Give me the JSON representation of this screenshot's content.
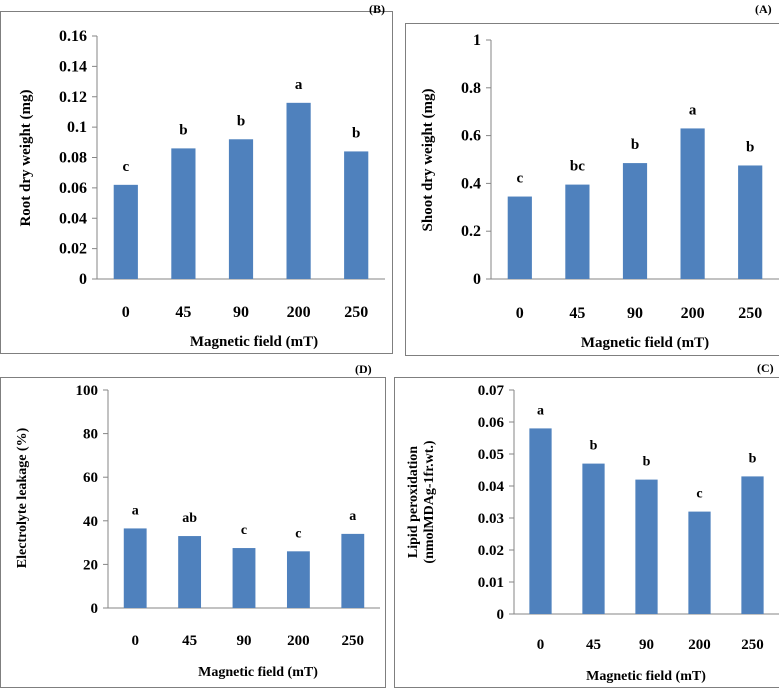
{
  "panel_labels": {
    "B": "(B)",
    "A": "(A)",
    "D": "(D)",
    "C": "(C)"
  },
  "chart_data": [
    {
      "id": "B",
      "type": "bar",
      "categories": [
        "0",
        "45",
        "90",
        "200",
        "250"
      ],
      "values": [
        0.062,
        0.086,
        0.092,
        0.116,
        0.084
      ],
      "letters": [
        "c",
        "b",
        "b",
        "a",
        "b"
      ],
      "xlabel": "Magnetic field (mT)",
      "ylabel": "Root dry weight (mg)",
      "ylim": [
        0,
        0.16
      ],
      "yticks": [
        "0",
        "0.02",
        "0.04",
        "0.06",
        "0.08",
        "0.1",
        "0.12",
        "0.14",
        "0.16"
      ],
      "bar_color": "#4f81bd",
      "grid": false
    },
    {
      "id": "A",
      "type": "bar",
      "categories": [
        "0",
        "45",
        "90",
        "200",
        "250"
      ],
      "values": [
        0.345,
        0.395,
        0.485,
        0.63,
        0.475
      ],
      "letters": [
        "c",
        "bc",
        "b",
        "a",
        "b"
      ],
      "xlabel": "Magnetic field (mT)",
      "ylabel": "Shoot dry weight (mg)",
      "ylim": [
        0,
        1
      ],
      "yticks": [
        "0",
        "0.2",
        "0.4",
        "0.6",
        "0.8",
        "1"
      ],
      "bar_color": "#4f81bd",
      "grid": false
    },
    {
      "id": "D",
      "type": "bar",
      "categories": [
        "0",
        "45",
        "90",
        "200",
        "250"
      ],
      "values": [
        36.5,
        33,
        27.5,
        26,
        34
      ],
      "letters": [
        "a",
        "ab",
        "c",
        "c",
        "a"
      ],
      "xlabel": "Magnetic field (mT)",
      "ylabel": "Electrolyte  leakage (%)",
      "ylim": [
        0,
        100
      ],
      "yticks": [
        "0",
        "20",
        "40",
        "60",
        "80",
        "100"
      ],
      "bar_color": "#4f81bd",
      "grid": false
    },
    {
      "id": "C",
      "type": "bar",
      "categories": [
        "0",
        "45",
        "90",
        "200",
        "250"
      ],
      "values": [
        0.058,
        0.047,
        0.042,
        0.032,
        0.043
      ],
      "letters": [
        "a",
        "b",
        "b",
        "c",
        "b"
      ],
      "xlabel": "Magnetic field (mT)",
      "ylabel": "Lipid  peroxidation",
      "ylabel2": "(nmolMDAg-1fr.wt.)",
      "ylim": [
        0,
        0.07
      ],
      "yticks": [
        "0",
        "0.01",
        "0.02",
        "0.03",
        "0.04",
        "0.05",
        "0.06",
        "0.07"
      ],
      "bar_color": "#4f81bd",
      "grid": false
    }
  ]
}
